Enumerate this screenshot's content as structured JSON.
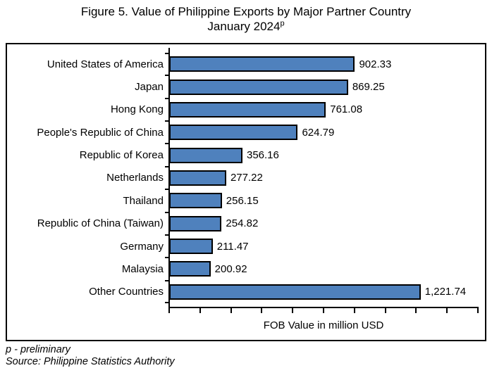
{
  "title": {
    "line1": "Figure 5. Value of Philippine Exports by Major Partner Country",
    "line2_base": "January 2024",
    "line2_superscript": "p"
  },
  "chart_data": {
    "type": "bar",
    "orientation": "horizontal",
    "title": "Figure 5. Value of Philippine Exports by Major Partner Country January 2024p",
    "categories": [
      "United States of America",
      "Japan",
      "Hong Kong",
      "People's Republic of China",
      "Republic of Korea",
      "Netherlands",
      "Thailand",
      "Republic of China (Taiwan)",
      "Germany",
      "Malaysia",
      "Other Countries"
    ],
    "values": [
      902.33,
      869.25,
      761.08,
      624.79,
      356.16,
      277.22,
      256.15,
      254.82,
      211.47,
      200.92,
      1221.74
    ],
    "value_labels": [
      "902.33",
      "869.25",
      "761.08",
      "624.79",
      "356.16",
      "277.22",
      "256.15",
      "254.82",
      "211.47",
      "200.92",
      "1,221.74"
    ],
    "xlabel": "FOB Value in million USD",
    "ylabel": "",
    "xlim": [
      0,
      1500
    ],
    "x_tick_count": 11,
    "x_tick_labels_shown": false,
    "grid": false,
    "legend": "none",
    "bar_fill_color": "#4F81BD",
    "bar_border_color": "#000000",
    "axis_color": "#000000"
  },
  "footer": {
    "note": "p - preliminary",
    "source": "Source: Philippine Statistics Authority"
  }
}
